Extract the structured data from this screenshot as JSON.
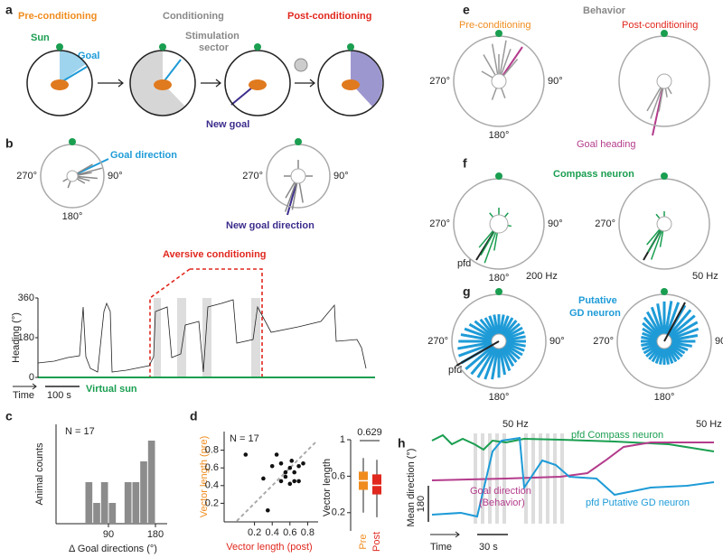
{
  "angles": {
    "left": "270°",
    "right": "90°",
    "bottom": "180°"
  },
  "panel_a": {
    "label": "a",
    "pre": "Pre-conditioning",
    "cond": "Conditioning",
    "post": "Post-conditioning",
    "sun": "Sun",
    "goal": "Goal",
    "stim1": "Stimulation",
    "stim2": "sector",
    "new_goal": "New goal"
  },
  "panel_b": {
    "label": "b",
    "goal_direction": "Goal direction",
    "new_goal_direction": "New goal direction",
    "aversive": "Aversive conditioning",
    "ylabel": "Heading (°)",
    "yticks": [
      0,
      180,
      360
    ],
    "ylim": [
      0,
      360
    ],
    "time": "Time",
    "scale": "100 s",
    "virtual_sun": "Virtual sun"
  },
  "panel_c": {
    "type": "histogram",
    "label": "c",
    "n": "N = 17",
    "ylabel": "Animal counts",
    "xlabel": "Δ Goal directions (°)",
    "xlim": [
      0,
      180
    ],
    "xticks": [
      90,
      180
    ],
    "ylim": [
      0,
      4
    ],
    "bins": [
      45,
      60,
      75,
      90,
      105,
      120,
      135,
      150,
      165,
      180
    ],
    "counts": [
      2,
      1,
      2,
      1,
      0,
      2,
      2,
      3,
      4
    ],
    "color": "#8c8c8c"
  },
  "panel_d": {
    "type": "scatter",
    "label": "d",
    "n": "N = 17",
    "xlabel": "Vector length (post)",
    "ylabel": "Vector length (pre)",
    "xlim": [
      0,
      0.9
    ],
    "ylim": [
      0,
      1
    ],
    "xticks": [
      0.2,
      0.4,
      0.6,
      0.8
    ],
    "yticks": [
      0.2,
      0.4,
      0.6,
      0.8
    ],
    "x": [
      0.1,
      0.3,
      0.35,
      0.4,
      0.45,
      0.5,
      0.5,
      0.55,
      0.55,
      0.6,
      0.6,
      0.62,
      0.65,
      0.65,
      0.7,
      0.7,
      0.75
    ],
    "y": [
      0.75,
      0.48,
      0.12,
      0.62,
      0.75,
      0.45,
      0.65,
      0.5,
      0.55,
      0.6,
      0.42,
      0.68,
      0.45,
      0.55,
      0.62,
      0.45,
      0.65
    ]
  },
  "panel_d_box": {
    "type": "box",
    "ylabel": "Vector length",
    "p_value": "0.629",
    "ylim": [
      0,
      1
    ],
    "yticks": [
      0.2,
      0.6,
      1
    ],
    "series": [
      {
        "name": "Pre",
        "color": "#f08c1e",
        "min": 0.2,
        "q1": 0.45,
        "median": 0.55,
        "q3": 0.65,
        "max": 0.8
      },
      {
        "name": "Post",
        "color": "#e0281e",
        "min": 0.15,
        "q1": 0.4,
        "median": 0.5,
        "q3": 0.62,
        "max": 0.78
      }
    ]
  },
  "panel_e": {
    "label": "e",
    "title": "Behavior",
    "pre": "Pre-conditioning",
    "post": "Post-conditioning",
    "goal_heading": "Goal heading"
  },
  "panel_f": {
    "label": "f",
    "title": "Compass neuron",
    "pfd": "pfd",
    "scale_left": "200 Hz",
    "scale_right": "50 Hz"
  },
  "panel_g": {
    "label": "g",
    "title1": "Putative",
    "title2": "GD neuron",
    "pfd": "pfd",
    "scale_left": "50 Hz",
    "scale_right": "50 Hz"
  },
  "panel_h": {
    "label": "h",
    "compass": "pfd Compass neuron",
    "goal1": "Goal direction",
    "goal2": "(Behavior)",
    "gd": "pfd Putative GD neuron",
    "ylabel": "Mean direction (°)",
    "yscale": "180",
    "time": "Time",
    "scale": "30 s"
  }
}
